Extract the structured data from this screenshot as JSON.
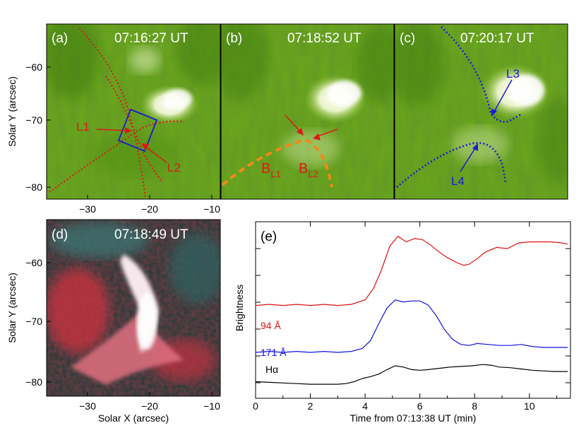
{
  "figure": {
    "panels": {
      "a": {
        "label": "(a)",
        "time": "07:16:27 UT",
        "loop_labels": [
          "L1",
          "L2"
        ]
      },
      "b": {
        "label": "(b)",
        "time": "07:18:52 UT",
        "branch_labels": [
          {
            "main": "B",
            "sub": "L1"
          },
          {
            "main": "B",
            "sub": "L2"
          }
        ]
      },
      "c": {
        "label": "(c)",
        "time": "07:20:17 UT",
        "loop_labels": [
          "L3",
          "L4"
        ]
      },
      "d": {
        "label": "(d)",
        "time": "07:18:49 UT"
      },
      "e": {
        "label": "(e)"
      }
    },
    "image_axes": {
      "ylabel": "Solar Y (arcsec)",
      "xlabel": "Solar X (arcsec)",
      "x_ticks": [
        "−30",
        "−20",
        "−10"
      ],
      "y_ticks": [
        "−60",
        "−70",
        "−80"
      ]
    },
    "colors": {
      "euv_green": "#5c9a14",
      "loop_red": "#e01818",
      "loop_orange": "#f08a1a",
      "loop_blue": "#1a1ad8",
      "curve_94": "#e01010",
      "curve_171": "#1010e0",
      "curve_ha": "#000000"
    }
  },
  "chart_data": {
    "type": "line",
    "xlabel": "Time from 07:13:38 UT (min)",
    "ylabel": "Brightness",
    "xlim": [
      0,
      11.5
    ],
    "x_ticks": [
      "0",
      "2",
      "4",
      "6",
      "8",
      "10"
    ],
    "series": [
      {
        "name": "94 Å",
        "color": "#e01010",
        "x": [
          0,
          0.5,
          1,
          1.5,
          2,
          2.5,
          3,
          3.5,
          4,
          4.3,
          4.6,
          4.9,
          5.2,
          5.5,
          5.8,
          6.1,
          6.4,
          6.7,
          7.0,
          7.3,
          7.6,
          7.8,
          8.1,
          8.4,
          8.8,
          9.2,
          9.6,
          10.0,
          10.4,
          10.8,
          11.2,
          11.4
        ],
        "y": [
          0.3,
          0.31,
          0.3,
          0.31,
          0.3,
          0.31,
          0.3,
          0.31,
          0.35,
          0.45,
          0.62,
          0.83,
          0.92,
          0.87,
          0.9,
          0.89,
          0.84,
          0.78,
          0.73,
          0.69,
          0.66,
          0.67,
          0.72,
          0.78,
          0.82,
          0.81,
          0.86,
          0.87,
          0.87,
          0.87,
          0.86,
          0.85
        ]
      },
      {
        "name": "171 Å",
        "color": "#1010e0",
        "x": [
          0,
          0.5,
          1,
          1.5,
          2,
          2.5,
          3,
          3.5,
          3.9,
          4.2,
          4.5,
          4.8,
          5.1,
          5.4,
          5.7,
          6.0,
          6.3,
          6.6,
          6.9,
          7.2,
          7.5,
          7.8,
          8.1,
          8.5,
          8.9,
          9.3,
          9.7,
          10.1,
          10.5,
          10.9,
          11.4
        ],
        "y": [
          0.15,
          0.16,
          0.15,
          0.16,
          0.15,
          0.16,
          0.15,
          0.16,
          0.19,
          0.27,
          0.44,
          0.6,
          0.68,
          0.66,
          0.67,
          0.67,
          0.63,
          0.52,
          0.38,
          0.28,
          0.23,
          0.22,
          0.24,
          0.23,
          0.22,
          0.22,
          0.23,
          0.21,
          0.2,
          0.2,
          0.2
        ]
      },
      {
        "name": "Hα",
        "color": "#000000",
        "x": [
          0,
          0.5,
          1,
          1.5,
          2,
          2.5,
          3,
          3.3,
          3.6,
          3.9,
          4.2,
          4.5,
          4.8,
          5.1,
          5.4,
          5.7,
          6.0,
          6.3,
          6.7,
          7.1,
          7.5,
          7.9,
          8.3,
          8.6,
          8.9,
          9.3,
          9.7,
          10.1,
          10.5,
          10.9,
          11.4
        ],
        "y": [
          0.05,
          0.04,
          0.03,
          0.02,
          0.01,
          0.01,
          0.01,
          0.02,
          0.05,
          0.1,
          0.13,
          0.17,
          0.24,
          0.3,
          0.28,
          0.24,
          0.23,
          0.24,
          0.26,
          0.28,
          0.29,
          0.3,
          0.32,
          0.31,
          0.28,
          0.27,
          0.25,
          0.23,
          0.22,
          0.21,
          0.21
        ]
      }
    ]
  }
}
